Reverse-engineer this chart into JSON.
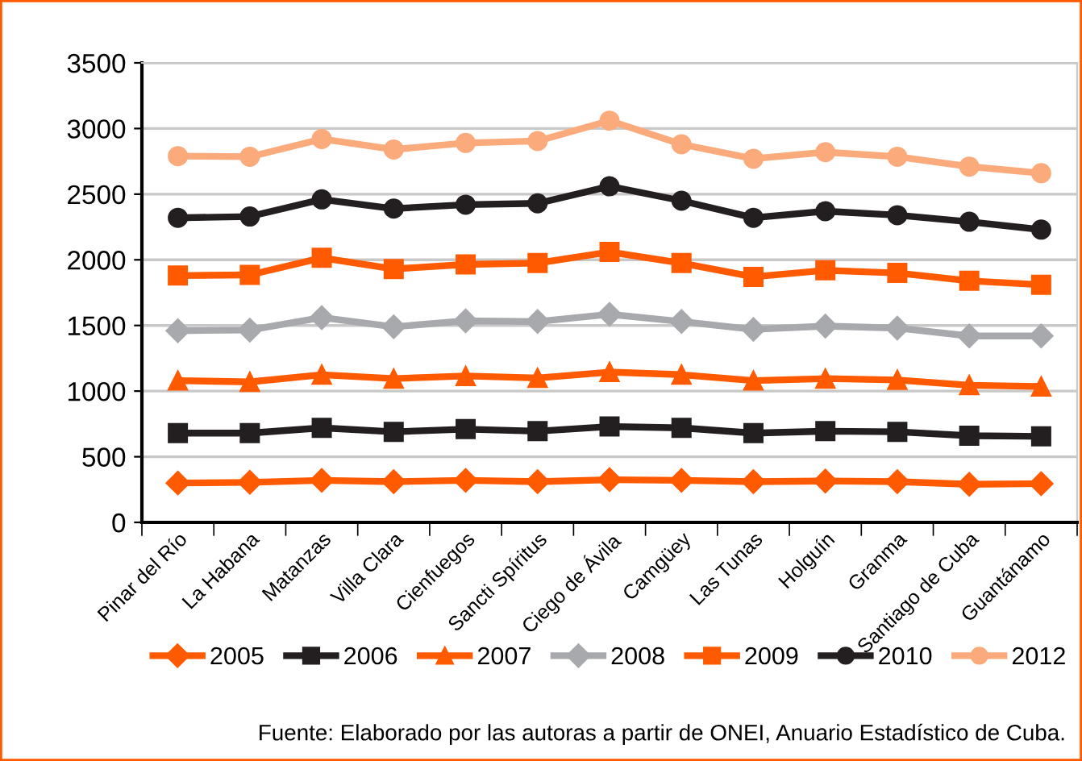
{
  "chart_data": {
    "type": "line",
    "categories": [
      "Pinar del Río",
      "La Habana",
      "Matanzas",
      "Villa Clara",
      "Cienfuegos",
      "Sancti Spíritus",
      "Ciego de Ávila",
      "Camgüey",
      "Las Tunas",
      "Holguín",
      "Granma",
      "Santiago de Cuba",
      "Guantánamo"
    ],
    "ylim": [
      0,
      3500
    ],
    "yticks": [
      0,
      500,
      1000,
      1500,
      2000,
      2500,
      3000,
      3500
    ],
    "grid": "y",
    "legend": "bottom",
    "series": [
      {
        "name": "2005",
        "color": "#ff5a00",
        "marker": "diamond",
        "values": [
          300,
          305,
          320,
          310,
          320,
          310,
          325,
          320,
          310,
          315,
          310,
          290,
          295
        ]
      },
      {
        "name": "2006",
        "color": "#231f20",
        "marker": "square",
        "values": [
          680,
          680,
          720,
          690,
          710,
          695,
          730,
          720,
          680,
          695,
          690,
          660,
          655
        ]
      },
      {
        "name": "2007",
        "color": "#ff5a00",
        "marker": "triangle",
        "values": [
          1080,
          1070,
          1125,
          1095,
          1115,
          1100,
          1145,
          1125,
          1080,
          1095,
          1085,
          1045,
          1035
        ]
      },
      {
        "name": "2008",
        "color": "#a7a9ac",
        "marker": "diamond",
        "values": [
          1460,
          1465,
          1560,
          1490,
          1535,
          1530,
          1585,
          1530,
          1470,
          1495,
          1480,
          1420,
          1420
        ]
      },
      {
        "name": "2009",
        "color": "#ff5a00",
        "marker": "square",
        "values": [
          1880,
          1885,
          2015,
          1930,
          1965,
          1975,
          2060,
          1975,
          1870,
          1920,
          1900,
          1840,
          1810
        ]
      },
      {
        "name": "2010",
        "color": "#231f20",
        "marker": "circle",
        "values": [
          2320,
          2330,
          2460,
          2390,
          2420,
          2430,
          2560,
          2450,
          2320,
          2370,
          2340,
          2290,
          2230
        ]
      },
      {
        "name": "2012",
        "color": "#fbaa7b",
        "marker": "circle",
        "values": [
          2790,
          2785,
          2920,
          2840,
          2890,
          2905,
          3060,
          2880,
          2770,
          2820,
          2785,
          2710,
          2660
        ]
      }
    ],
    "annotations": [
      "Fuente: Elaborado por las autoras a partir de ONEI, Anuario Estadístico de Cuba."
    ]
  }
}
